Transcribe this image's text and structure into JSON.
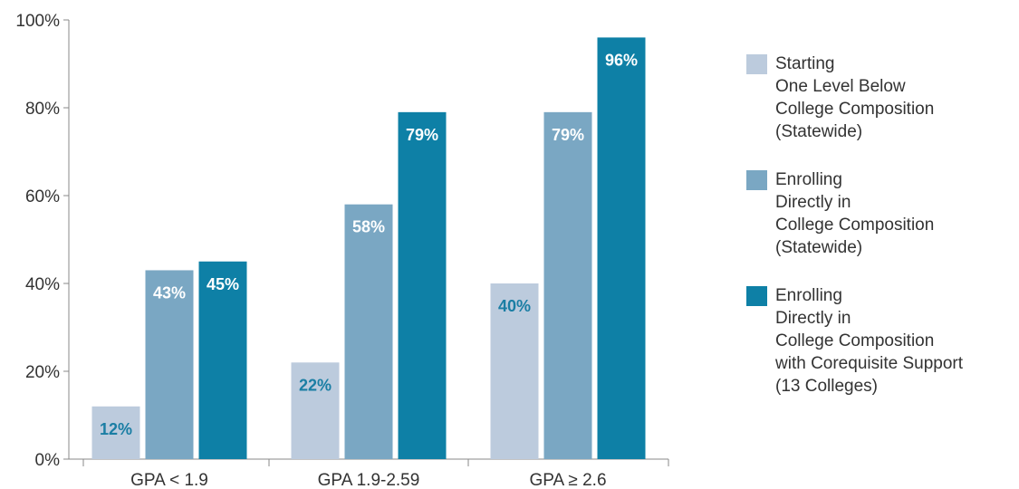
{
  "chart_data": {
    "type": "bar",
    "title": "",
    "xlabel": "",
    "ylabel": "",
    "categories": [
      "GPA < 1.9",
      "GPA 1.9-2.59",
      "GPA ≥ 2.6"
    ],
    "series": [
      {
        "name": "Starting\nOne Level Below\nCollege Composition\n(Statewide)",
        "color": "#bccbdd",
        "values": [
          12,
          22,
          40
        ],
        "value_labels": [
          "12%",
          "22%",
          "40%"
        ],
        "label_color": "#1a7ea4"
      },
      {
        "name": "Enrolling\nDirectly in\nCollege Composition\n(Statewide)",
        "color": "#7aa7c3",
        "values": [
          43,
          58,
          79
        ],
        "value_labels": [
          "43%",
          "58%",
          "79%"
        ],
        "label_color": "#ffffff"
      },
      {
        "name": "Enrolling\nDirectly in\nCollege Composition\nwith Corequisite Support\n(13 Colleges)",
        "color": "#0e80a6",
        "values": [
          45,
          79,
          96
        ],
        "value_labels": [
          "45%",
          "79%",
          "96%"
        ],
        "label_color": "#ffffff"
      }
    ],
    "ylim": [
      0,
      100
    ],
    "yticks": [
      0,
      20,
      40,
      60,
      80,
      100
    ],
    "ytick_labels": [
      "0%",
      "20%",
      "40%",
      "60%",
      "80%",
      "100%"
    ],
    "grid": false,
    "legend_position": "right"
  }
}
